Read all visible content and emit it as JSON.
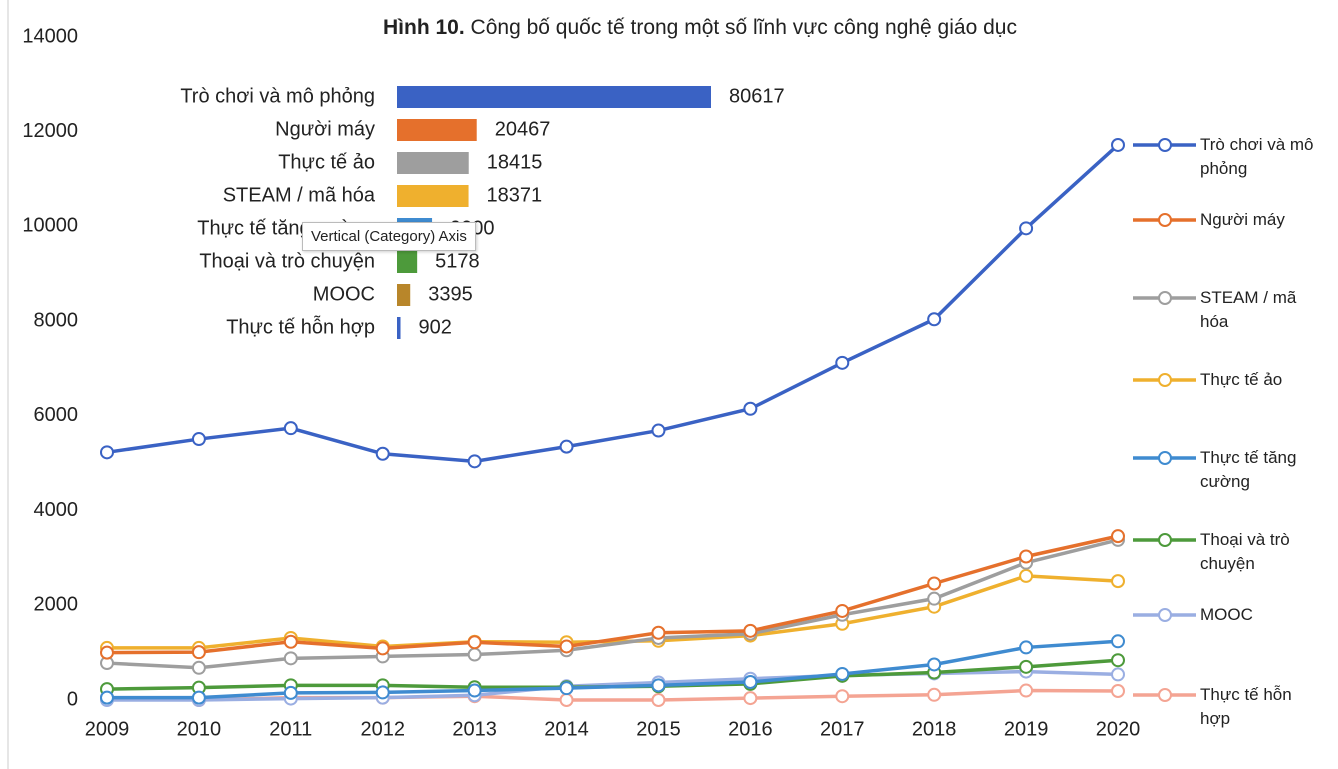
{
  "chart_data": [
    {
      "type": "line",
      "title_bold": "Hình 10.",
      "title": "Công bố quốc tế trong một số lĩnh vực công nghệ giáo dục",
      "categories": [
        "2009",
        "2010",
        "2011",
        "2012",
        "2013",
        "2014",
        "2015",
        "2016",
        "2017",
        "2018",
        "2019",
        "2020"
      ],
      "ylim": [
        0,
        14000
      ],
      "yticks": [
        0,
        2000,
        4000,
        6000,
        8000,
        10000,
        12000,
        14000
      ],
      "grid": false,
      "legend": "right",
      "series": [
        {
          "name": "Trò chơi và mô phỏng",
          "color": "#3a62c4",
          "values": [
            5230,
            5510,
            5740,
            5200,
            5040,
            5350,
            5690,
            6150,
            7120,
            8040,
            9960,
            11720
          ]
        },
        {
          "name": "Người máy",
          "color": "#e5702c",
          "values": [
            1000,
            1010,
            1230,
            1090,
            1220,
            1130,
            1420,
            1460,
            1880,
            2460,
            3030,
            3460
          ]
        },
        {
          "name": "STEAM / mã hóa",
          "color": "#9e9e9e",
          "values": [
            780,
            680,
            880,
            920,
            960,
            1050,
            1310,
            1400,
            1800,
            2140,
            2900,
            3380
          ]
        },
        {
          "name": "Thực tế ảo",
          "color": "#efb02e",
          "values": [
            1100,
            1100,
            1310,
            1130,
            1230,
            1220,
            1250,
            1360,
            1610,
            1970,
            2620,
            2510
          ]
        },
        {
          "name": "Thực tế tăng cường",
          "color": "#3f8bd0",
          "values": [
            50,
            50,
            150,
            160,
            200,
            250,
            310,
            380,
            550,
            750,
            1110,
            1240
          ]
        },
        {
          "name": "Thoại và trò chuyện",
          "color": "#4d9a3b",
          "values": [
            230,
            260,
            310,
            310,
            270,
            270,
            290,
            340,
            510,
            580,
            700,
            840
          ]
        },
        {
          "name": "MOOC",
          "color": "#9aaee2",
          "values": [
            0,
            0,
            30,
            50,
            100,
            290,
            370,
            450,
            520,
            560,
            600,
            540
          ]
        },
        {
          "name": "Thực tế hỗn hợp",
          "color": "#f4a493",
          "values": [
            50,
            0,
            50,
            50,
            80,
            0,
            0,
            40,
            80,
            110,
            200,
            190
          ]
        }
      ]
    },
    {
      "type": "barh",
      "categories": [
        "Trò chơi và mô phỏng",
        "Người máy",
        "Thực tế ảo",
        "STEAM / mã hóa",
        "Thực tế tăng cường",
        "Thoại và trò chuyện",
        "MOOC",
        "Thực tế hỗn hợp"
      ],
      "values": [
        80617,
        20467,
        18415,
        18371,
        9000,
        5178,
        3395,
        902
      ],
      "colors": [
        "#3a62c4",
        "#e5702c",
        "#9e9e9e",
        "#efb02e",
        "#3f8bd0",
        "#4d9a3b",
        "#b8862a",
        "#3a62c4"
      ],
      "tooltip": "Vertical (Category) Axis"
    }
  ]
}
